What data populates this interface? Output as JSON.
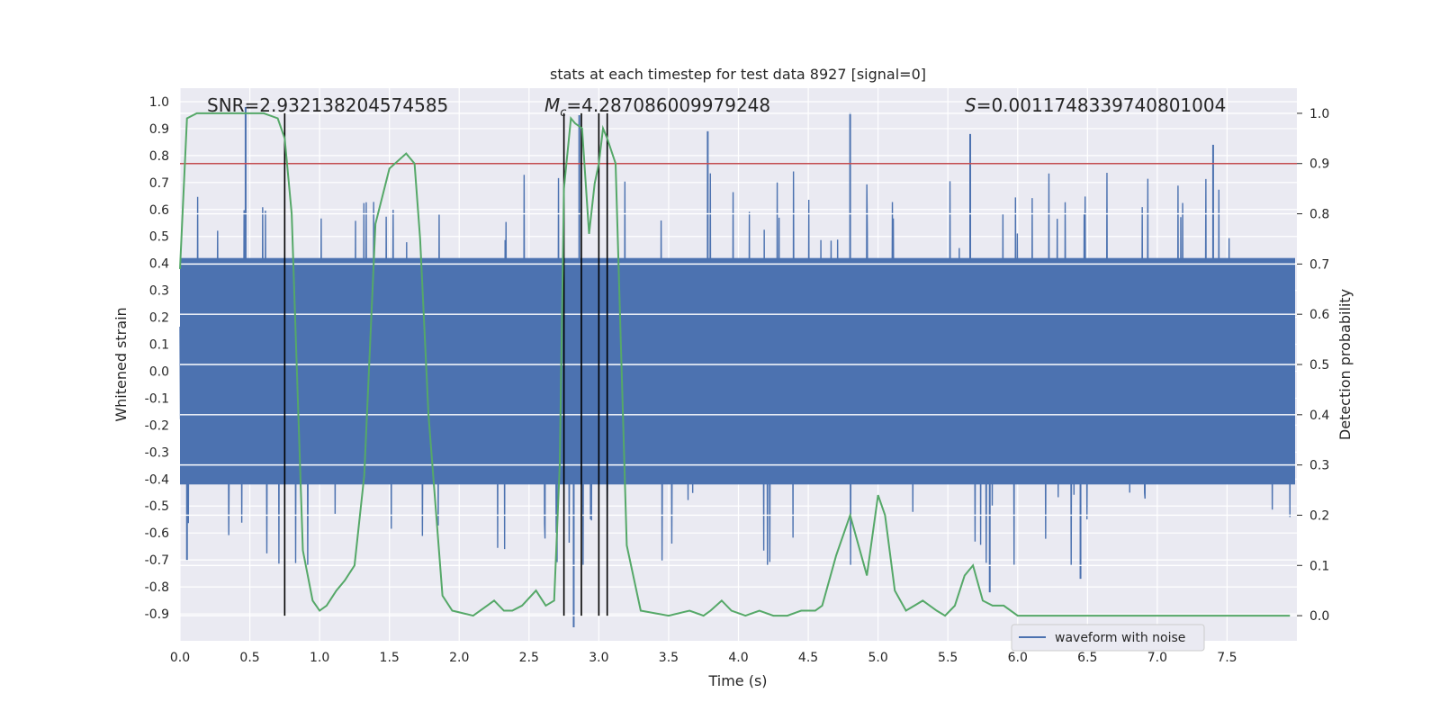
{
  "chart_data": {
    "type": "line",
    "title": "stats at each timestep for test data 8927 [signal=0]",
    "xlabel": "Time (s)",
    "ylabel": "Whitened strain",
    "y2label": "Detection probability",
    "xlim": [
      0.0,
      8.0
    ],
    "ylim": [
      -1.0,
      1.05
    ],
    "y2lim": [
      -0.05,
      1.05
    ],
    "x_ticks": [
      "0.0",
      "0.5",
      "1.0",
      "1.5",
      "2.0",
      "2.5",
      "3.0",
      "3.5",
      "4.0",
      "4.5",
      "5.0",
      "5.5",
      "6.0",
      "6.5",
      "7.0",
      "7.5"
    ],
    "y_ticks": [
      "1.0",
      "0.9",
      "0.8",
      "0.7",
      "0.6",
      "0.5",
      "0.4",
      "0.3",
      "0.2",
      "0.1",
      "0.0",
      "-0.1",
      "-0.2",
      "-0.3",
      "-0.4",
      "-0.5",
      "-0.6",
      "-0.7",
      "-0.8",
      "-0.9"
    ],
    "y2_ticks": [
      "1.0",
      "0.9",
      "0.8",
      "0.7",
      "0.6",
      "0.5",
      "0.4",
      "0.3",
      "0.2",
      "0.1",
      "0.0"
    ],
    "annotations": {
      "snr": "SNR=2.932138204574585",
      "mc_symbol": "M",
      "mc_sub": "c",
      "mc_value": "=4.287086009979248",
      "s_symbol": "S",
      "s_value": "=0.0011748339740801004"
    },
    "legend": {
      "label": "waveform with noise",
      "location": "lower-right"
    },
    "threshold": {
      "y2": 0.9,
      "color": "#c44e52"
    },
    "markers_x": [
      0.75,
      2.75,
      2.875,
      3.0,
      3.06
    ],
    "waveform": {
      "name": "waveform with noise",
      "color": "#4c72b0",
      "envelope_typical": 0.42,
      "spikes": [
        [
          0.47,
          0.98
        ],
        [
          0.05,
          -0.7
        ],
        [
          2.82,
          -0.95
        ],
        [
          2.86,
          0.95
        ],
        [
          4.8,
          0.96
        ],
        [
          5.66,
          0.88
        ],
        [
          7.4,
          0.84
        ],
        [
          5.8,
          -0.82
        ],
        [
          6.45,
          -0.77
        ],
        [
          3.78,
          0.89
        ]
      ]
    },
    "probability": {
      "name": "detection probability",
      "color": "#55a868",
      "x": [
        0.0,
        0.05,
        0.12,
        0.25,
        0.4,
        0.6,
        0.7,
        0.75,
        0.8,
        0.88,
        0.95,
        1.0,
        1.05,
        1.12,
        1.18,
        1.25,
        1.32,
        1.4,
        1.5,
        1.62,
        1.68,
        1.72,
        1.78,
        1.88,
        1.95,
        2.1,
        2.2,
        2.25,
        2.32,
        2.38,
        2.45,
        2.55,
        2.62,
        2.68,
        2.72,
        2.75,
        2.8,
        2.83,
        2.88,
        2.93,
        2.97,
        3.0,
        3.03,
        3.06,
        3.12,
        3.2,
        3.3,
        3.5,
        3.65,
        3.75,
        3.8,
        3.88,
        3.95,
        4.05,
        4.15,
        4.25,
        4.35,
        4.45,
        4.55,
        4.6,
        4.7,
        4.8,
        4.92,
        5.0,
        5.05,
        5.12,
        5.2,
        5.32,
        5.42,
        5.48,
        5.55,
        5.62,
        5.68,
        5.75,
        5.82,
        5.9,
        6.0,
        6.5,
        7.0,
        7.95
      ],
      "y": [
        0.69,
        0.99,
        1.0,
        1.0,
        1.0,
        1.0,
        0.99,
        0.95,
        0.8,
        0.13,
        0.03,
        0.01,
        0.02,
        0.05,
        0.07,
        0.1,
        0.28,
        0.78,
        0.89,
        0.92,
        0.9,
        0.75,
        0.4,
        0.04,
        0.01,
        0.0,
        0.02,
        0.03,
        0.01,
        0.01,
        0.02,
        0.05,
        0.02,
        0.03,
        0.3,
        0.85,
        0.99,
        0.98,
        0.97,
        0.76,
        0.86,
        0.9,
        0.97,
        0.95,
        0.9,
        0.14,
        0.01,
        0.0,
        0.01,
        0.0,
        0.01,
        0.03,
        0.01,
        0.0,
        0.01,
        0.0,
        0.0,
        0.01,
        0.01,
        0.02,
        0.12,
        0.2,
        0.08,
        0.24,
        0.2,
        0.05,
        0.01,
        0.03,
        0.01,
        0.0,
        0.02,
        0.08,
        0.1,
        0.03,
        0.02,
        0.02,
        0.0,
        0.0,
        0.0,
        0.0
      ]
    }
  }
}
